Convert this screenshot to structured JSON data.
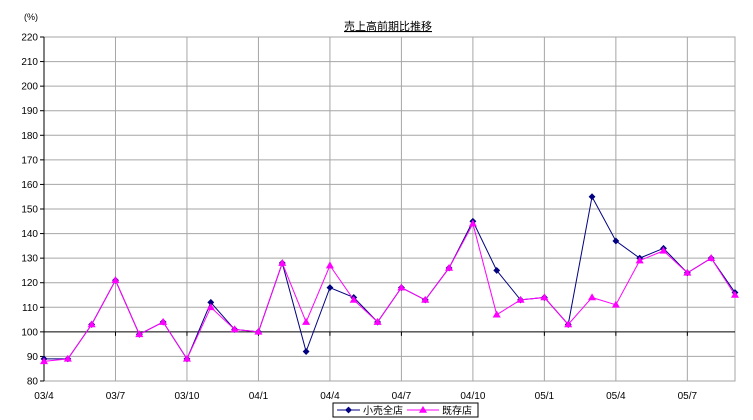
{
  "chart_data": {
    "type": "line",
    "title": "売上高前期比推移",
    "ylabel": "(%)",
    "ylim": [
      80,
      220
    ],
    "yticks": [
      80,
      90,
      100,
      110,
      120,
      130,
      140,
      150,
      160,
      170,
      180,
      190,
      200,
      210,
      220
    ],
    "x_ticks": [
      "03/4",
      "03/7",
      "03/10",
      "04/1",
      "04/4",
      "04/7",
      "04/10",
      "05/1",
      "05/4",
      "05/7"
    ],
    "x_tick_step": 3,
    "x_axis_crosses": 100,
    "grid": true,
    "legend": "bottom",
    "series": [
      {
        "name": "小売全店",
        "color": "#000080",
        "marker": "diamond",
        "values": [
          89,
          89,
          103,
          121,
          99,
          104,
          89,
          112,
          101,
          100,
          128,
          92,
          118,
          114,
          104,
          118,
          113,
          126,
          145,
          125,
          113,
          114,
          103,
          155,
          137,
          130,
          134,
          124,
          130,
          116
        ]
      },
      {
        "name": "既存店",
        "color": "#FF00FF",
        "marker": "triangle",
        "values": [
          88,
          89,
          103,
          121,
          99,
          104,
          89,
          110,
          101,
          100,
          128,
          104,
          127,
          113,
          104,
          118,
          113,
          126,
          144,
          107,
          113,
          114,
          103,
          114,
          111,
          129,
          133,
          124,
          130,
          115
        ]
      }
    ]
  }
}
